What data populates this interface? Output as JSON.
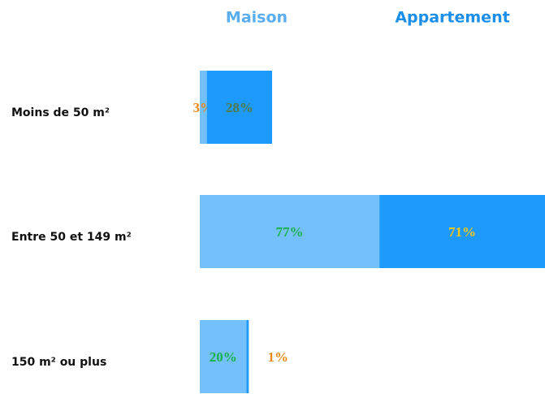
{
  "chart_data": {
    "type": "stacked-bar-horizontal",
    "categories": [
      "Moins de 50 m²",
      "Entre 50 et 149 m²",
      "150 m² ou plus"
    ],
    "series": [
      {
        "name": "Maison",
        "color": "#74c0fc",
        "legend_color": "#5aaef0",
        "values": [
          3,
          77,
          20
        ],
        "value_labels": [
          "3%",
          "77%",
          "20%"
        ],
        "value_label_colors": [
          "#e8891c",
          "#19b24b",
          "#19b24b"
        ]
      },
      {
        "name": "Appartement",
        "color": "#1e9afc",
        "legend_color": "#1a8ee8",
        "values": [
          28,
          71,
          1
        ],
        "value_labels": [
          "28%",
          "71%",
          "1%"
        ],
        "value_label_colors": [
          "#4f7a4a",
          "#f2c81a",
          "#e8891c"
        ]
      }
    ]
  }
}
